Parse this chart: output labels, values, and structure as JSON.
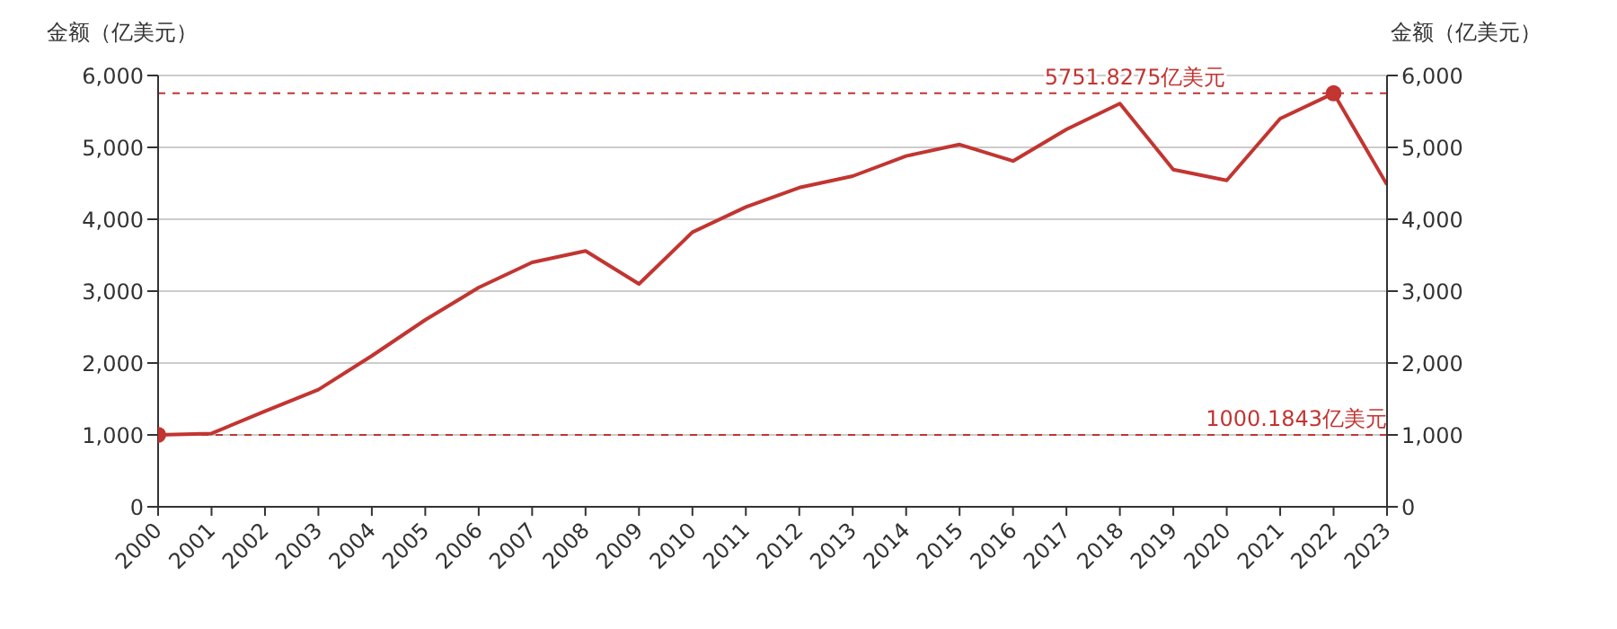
{
  "chart_data": {
    "type": "line",
    "ylabel": "金额（亿美元）",
    "y2label": "金额（亿美元）",
    "categories": [
      "2000",
      "2001",
      "2002",
      "2003",
      "2004",
      "2005",
      "2006",
      "2007",
      "2008",
      "2009",
      "2010",
      "2011",
      "2012",
      "2013",
      "2014",
      "2015",
      "2016",
      "2017",
      "2018",
      "2019",
      "2020",
      "2021",
      "2022",
      "2023"
    ],
    "series": [
      {
        "color": "#c23531",
        "values": [
          1000.1843,
          1020,
          1330,
          1630,
          2100,
          2600,
          3050,
          3400,
          3560,
          3100,
          3820,
          4170,
          4440,
          4600,
          4880,
          5040,
          4810,
          5250,
          5610,
          4690,
          4540,
          5400,
          5751.8275,
          4480
        ]
      }
    ],
    "ylim": [
      0,
      6000
    ],
    "yticks": [
      0,
      {
        "value": 1000,
        "label": "1,000"
      },
      {
        "value": 2000,
        "label": "2,000"
      },
      {
        "value": 3000,
        "label": "3,000"
      },
      {
        "value": 4000,
        "label": "4,000"
      },
      {
        "value": 5000,
        "label": "5,000"
      },
      {
        "value": 6000,
        "label": "6,000"
      }
    ],
    "y2lim": [
      0,
      6000
    ],
    "y2ticks": [
      0,
      {
        "value": 1000,
        "label": "1,000"
      },
      {
        "value": 2000,
        "label": "2,000"
      },
      {
        "value": 3000,
        "label": "3,000"
      },
      {
        "value": 4000,
        "label": "4,000"
      },
      {
        "value": 5000,
        "label": "5,000"
      },
      {
        "value": 6000,
        "label": "6,000"
      }
    ],
    "ref_lines": [
      {
        "axis": "y",
        "value": 5751.8275,
        "label": "5751.8275亿美元",
        "color": "#c23531",
        "line_style": "dashed"
      },
      {
        "axis": "y",
        "value": 1000.1843,
        "label": "1000.1843亿美元",
        "color": "#c23531",
        "line_style": "dashed"
      }
    ],
    "grid": "y",
    "marker": "none",
    "line_style": "solid"
  }
}
